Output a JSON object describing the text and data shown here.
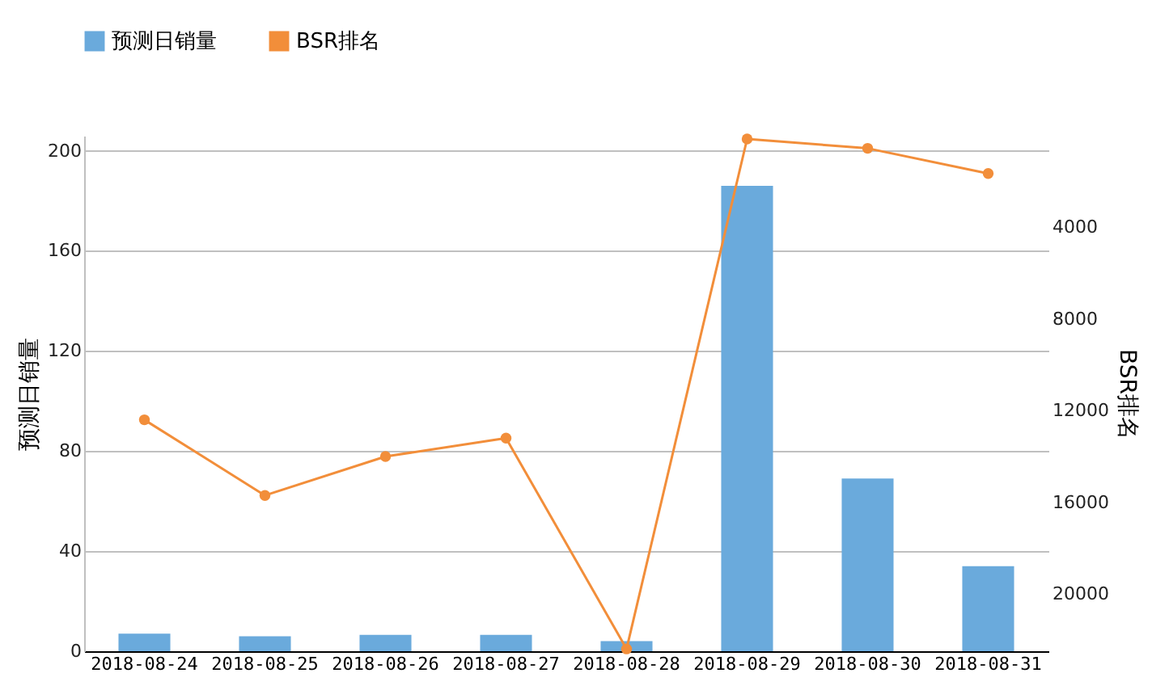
{
  "chart_data": {
    "type": "bar",
    "categories": [
      "2018-08-24",
      "2018-08-25",
      "2018-08-26",
      "2018-08-27",
      "2018-08-28",
      "2018-08-29",
      "2018-08-30",
      "2018-08-31"
    ],
    "series": [
      {
        "name": "预测日销量",
        "color": "#6aaadc",
        "values": [
          7,
          6,
          6.5,
          6.5,
          4,
          186,
          69,
          34
        ]
      },
      {
        "name": "BSR排名",
        "type": "line",
        "axis": "y2",
        "color": "#f28e3a",
        "marker": "circle",
        "line_style": "solid",
        "values": [
          12400,
          15700,
          14000,
          13200,
          22400,
          140,
          550,
          1650
        ]
      }
    ],
    "ylabel": "预测日销量",
    "y2label": "BSR排名",
    "ylim": [
      0,
      206
    ],
    "yticks": [
      0,
      40,
      80,
      120,
      160,
      200
    ],
    "y2lim": [
      22500,
      0
    ],
    "y2ticks": [
      4000,
      8000,
      12000,
      16000,
      20000
    ],
    "grid": "y",
    "legend": "top"
  }
}
